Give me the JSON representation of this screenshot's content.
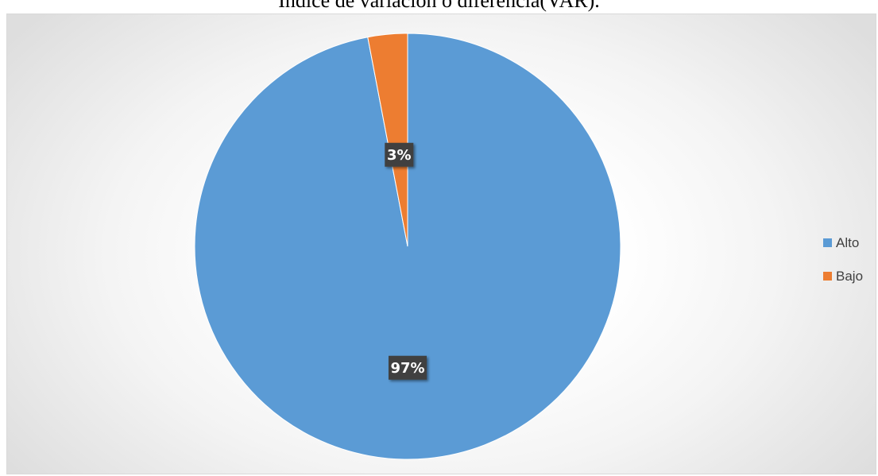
{
  "chart_data": {
    "type": "pie",
    "title": "Índice de variación o diferencia(VAR).",
    "categories": [
      "Alto",
      "Bajo"
    ],
    "values": [
      97,
      3
    ],
    "data_labels": [
      "97%",
      "3%"
    ],
    "colors": [
      "#5b9bd5",
      "#ed7d31"
    ],
    "legend_position": "right",
    "start": "top",
    "direction": "clockwise"
  }
}
